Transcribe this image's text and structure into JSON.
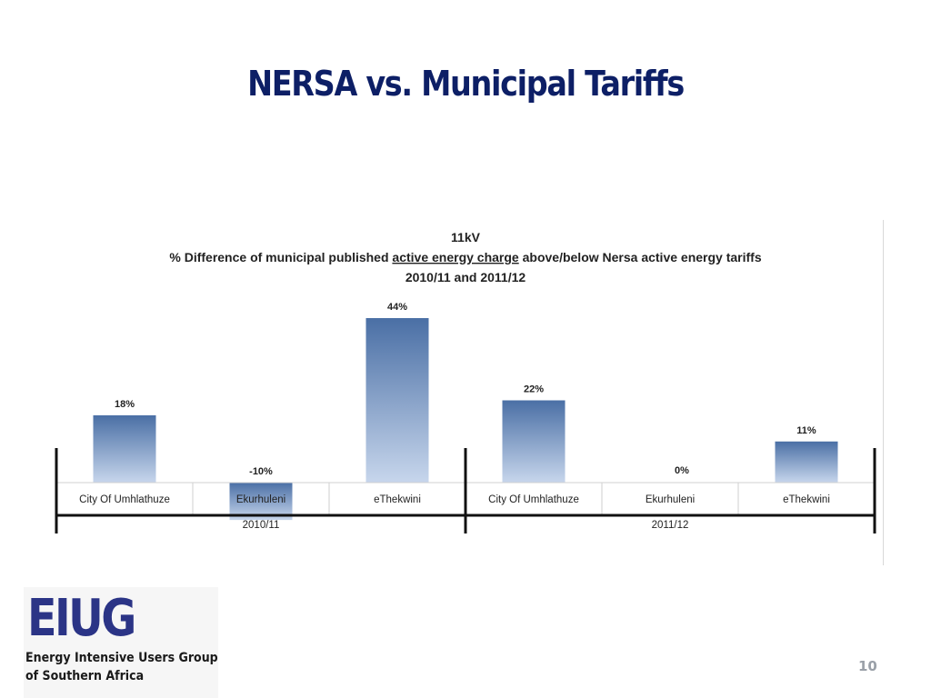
{
  "slide": {
    "title": "NERSA vs. Municipal Tariffs",
    "page_number": "10",
    "logo": {
      "mark": "EIUG",
      "line1": "Energy Intensive Users Group",
      "line2": "of Southern Africa"
    }
  },
  "colors": {
    "title": "#0d1f66",
    "bar_top": "#4a6fa5",
    "bar_bottom": "#c7d6ec",
    "logo": "#2b3486"
  },
  "chart_data": {
    "type": "bar",
    "title_lines": [
      "11kV",
      "% Difference of municipal published",
      "active energy charge",
      "above/below Nersa active energy tariffs",
      "2010/11 and 2011/12"
    ],
    "categories": [
      "City Of Umhlathuze",
      "Ekurhuleni",
      "eThekwini",
      "City Of Umhlathuze",
      "Ekurhuleni",
      "eThekwini"
    ],
    "groups": [
      "2010/11",
      "2011/12"
    ],
    "group_index": [
      0,
      0,
      0,
      1,
      1,
      1
    ],
    "values": [
      18,
      -10,
      44,
      22,
      0,
      11
    ],
    "data_labels": [
      "18%",
      "-10%",
      "44%",
      "22%",
      "0%",
      "11%"
    ],
    "value_unit": "%",
    "ylim": [
      -10,
      44
    ],
    "grid": false,
    "legend": "none"
  }
}
